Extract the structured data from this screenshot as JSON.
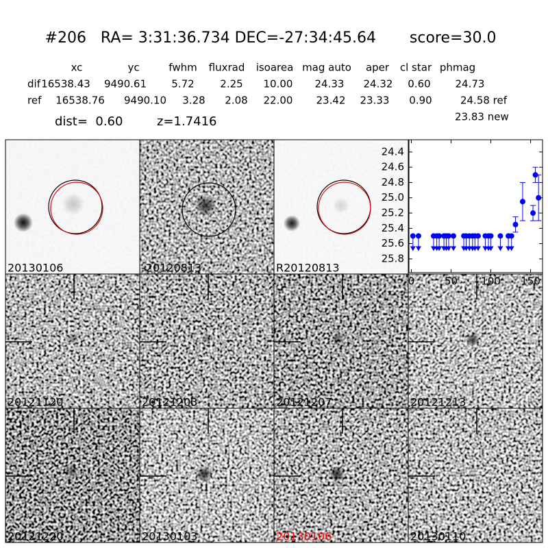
{
  "header": {
    "title": "#206   RA= 3:31:36.734 DEC=-27:34:45.64       score=30.0"
  },
  "table": {
    "columns": [
      "xc",
      "yc",
      "fwhm",
      "fluxrad",
      "isoarea",
      "mag auto",
      "aper",
      "cl star",
      "phmag"
    ],
    "rows": [
      [
        "dif",
        "16538.43",
        "9490.61",
        "5.72",
        "2.25",
        "10.00",
        "24.33",
        "24.32",
        "0.60",
        "24.73"
      ],
      [
        "ref",
        "16538.76",
        "9490.10",
        "3.28",
        "2.08",
        "22.00",
        "23.42",
        "23.33",
        "0.90",
        "24.58 ref"
      ]
    ],
    "extra": "23.83 new"
  },
  "info": {
    "dist": "dist=  0.60",
    "z": "z=1.7416"
  },
  "panels": [
    {
      "label": "20130106",
      "color": "#000000"
    },
    {
      "label": "-20120813",
      "color": "#000000"
    },
    {
      "label": "R20120813",
      "color": "#000000"
    },
    {
      "label": null,
      "color": "#000000"
    },
    {
      "label": "20121120",
      "color": "#000000"
    },
    {
      "label": "20121203",
      "color": "#000000"
    },
    {
      "label": "20121207",
      "color": "#000000"
    },
    {
      "label": "20121213",
      "color": "#000000"
    },
    {
      "label": "20121220",
      "color": "#000000"
    },
    {
      "label": "20130103",
      "color": "#000000"
    },
    {
      "label": "20130106",
      "color": "#ff0000"
    },
    {
      "label": "20130110",
      "color": "#000000"
    }
  ],
  "chart_data": {
    "type": "scatter",
    "color": "#0000ff",
    "xlim": [
      -3,
      165
    ],
    "ylim": [
      24.24,
      25.98
    ],
    "y_inverted": true,
    "xticks": [
      0,
      50,
      100,
      150
    ],
    "yticks": [
      24.4,
      24.6,
      24.8,
      {
        "value": 25,
        "label": "25.0"
      },
      25.2,
      25.4,
      25.6,
      25.8
    ],
    "x": [
      131,
      140,
      153,
      156,
      160
    ],
    "values": [
      25.35,
      25.05,
      25.2,
      24.7,
      25.0
    ],
    "errors": [
      0.1,
      0.25,
      0.1,
      0.1,
      0.3
    ],
    "upper_limits": {
      "x": [
        2,
        9,
        28,
        32,
        35,
        41,
        44,
        47,
        53,
        66,
        69,
        73,
        77,
        80,
        84,
        93,
        97,
        100,
        112,
        122,
        126
      ],
      "values": [
        25.5,
        25.5,
        25.5,
        25.5,
        25.5,
        25.5,
        25.5,
        25.5,
        25.5,
        25.5,
        25.5,
        25.5,
        25.5,
        25.5,
        25.5,
        25.5,
        25.5,
        25.5,
        25.5,
        25.5,
        25.5
      ]
    }
  }
}
